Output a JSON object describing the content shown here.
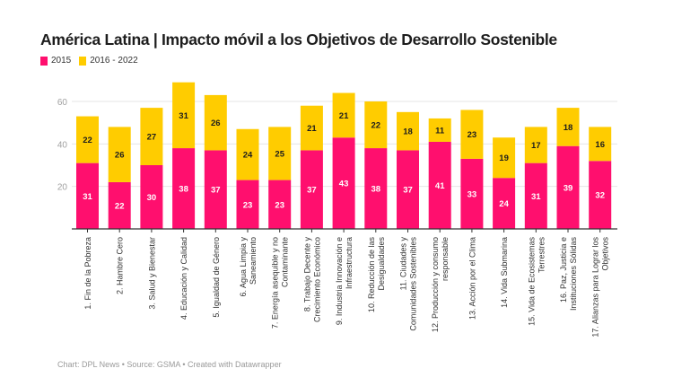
{
  "title": "América Latina | Impacto móvil a los Objetivos de Desarrollo Sostenible",
  "footer": "Chart: DPL News • Source: GSMA • Created with Datawrapper",
  "colors": {
    "series_2015": "#ff0f6e",
    "series_2016_2022": "#ffcc00",
    "grid": "#e6e6e6",
    "axis": "#333333"
  },
  "legend": [
    {
      "label": "2015",
      "color": "#ff0f6e"
    },
    {
      "label": "2016 - 2022",
      "color": "#ffcc00"
    }
  ],
  "chart_data": {
    "type": "bar",
    "stacked": true,
    "title": "América Latina | Impacto móvil a los Objetivos de Desarrollo Sostenible",
    "xlabel": "",
    "ylabel": "",
    "ylim": [
      0,
      60
    ],
    "yticks": [
      20,
      40,
      60
    ],
    "grid": true,
    "legend_position": "top-left",
    "categories": [
      [
        "1. Fin de la Pobreza"
      ],
      [
        "2. Hambre Cero"
      ],
      [
        "3. Salud y Bienestar"
      ],
      [
        "4. Educación y Calidad"
      ],
      [
        "5. Igualdad de Género"
      ],
      [
        "6. Agua Limpia y",
        "Saneamiento"
      ],
      [
        "7. Energía asequible y no",
        "Contaminante"
      ],
      [
        "8. Trabajo Decente y",
        "Crecimiento Económico"
      ],
      [
        "9. Industria Innovación e",
        "Infraestructura"
      ],
      [
        "10. Reducción de las",
        "Desigualdades"
      ],
      [
        "11. Ciudades y",
        "Comunidades Sostenibles"
      ],
      [
        "12. Producción y consumo",
        "responsable"
      ],
      [
        "13. Acción por el Clima"
      ],
      [
        "14. Vida Submarina"
      ],
      [
        "15. Vida de Ecosistemas",
        "Terrestres"
      ],
      [
        "16. Paz, Justicia e",
        "Instituciones Sólidas"
      ],
      [
        "17. Alianzas para Lograr los",
        "Objetivos"
      ]
    ],
    "series": [
      {
        "name": "2015",
        "color": "#ff0f6e",
        "values": [
          31,
          22,
          30,
          38,
          37,
          23,
          23,
          37,
          43,
          38,
          37,
          41,
          33,
          24,
          31,
          39,
          32
        ]
      },
      {
        "name": "2016 - 2022",
        "color": "#ffcc00",
        "values": [
          22,
          26,
          27,
          31,
          26,
          24,
          25,
          21,
          21,
          22,
          18,
          11,
          23,
          19,
          17,
          18,
          16
        ]
      }
    ]
  }
}
